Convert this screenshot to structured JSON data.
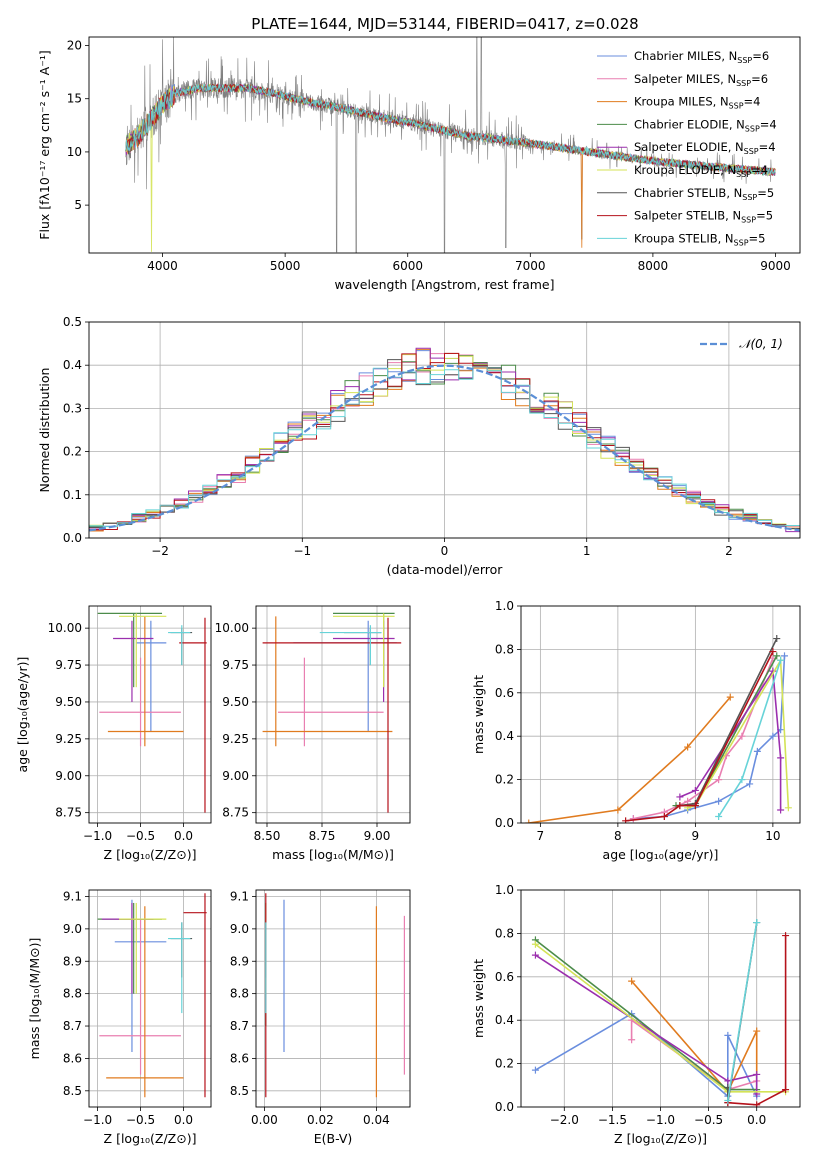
{
  "title": "PLATE=1644, MJD=53144, FIBERID=0417, z=0.028",
  "series": [
    {
      "name": "Chabrier MILES",
      "nssp": "6",
      "color": "#6a8ede"
    },
    {
      "name": "Salpeter MILES",
      "nssp": "6",
      "color": "#e97fb1"
    },
    {
      "name": "Kroupa MILES",
      "nssp": "4",
      "color": "#e07b1f"
    },
    {
      "name": "Chabrier ELODIE",
      "nssp": "4",
      "color": "#4c8c4a"
    },
    {
      "name": "Salpeter ELODIE",
      "nssp": "4",
      "color": "#9b2fae"
    },
    {
      "name": "Kroupa ELODIE",
      "nssp": "4",
      "color": "#d4e357"
    },
    {
      "name": "Chabrier STELIB",
      "nssp": "5",
      "color": "#555555"
    },
    {
      "name": "Salpeter STELIB",
      "nssp": "5",
      "color": "#b5121b"
    },
    {
      "name": "Kroupa STELIB",
      "nssp": "5",
      "color": "#67d3d8"
    }
  ],
  "nssp_prefix": "N",
  "nssp_sub": "SSP",
  "chart_data": [
    {
      "id": "spectrum",
      "type": "line",
      "xlabel": "wavelength [Angstrom, rest frame]",
      "ylabel": "Flux [fλ10⁻¹⁷ erg cm⁻² s⁻¹ A⁻¹]",
      "xlim": [
        3400,
        9200
      ],
      "ylim": [
        0.5,
        20.8
      ],
      "xticks": [
        4000,
        5000,
        6000,
        7000,
        8000,
        9000
      ],
      "yticks": [
        5,
        10,
        15,
        20
      ],
      "grid": false,
      "legend": "top-right",
      "data_color": "#808080",
      "continuum": [
        [
          3700,
          10.5
        ],
        [
          3800,
          11.5
        ],
        [
          3900,
          13
        ],
        [
          4000,
          14.5
        ],
        [
          4100,
          15.5
        ],
        [
          4300,
          16
        ],
        [
          4500,
          16
        ],
        [
          4700,
          16
        ],
        [
          4900,
          15.5
        ],
        [
          5200,
          14.7
        ],
        [
          5500,
          14
        ],
        [
          5800,
          13.2
        ],
        [
          6000,
          12.8
        ],
        [
          6300,
          12
        ],
        [
          6500,
          11.5
        ],
        [
          6800,
          11.1
        ],
        [
          7000,
          10.8
        ],
        [
          7300,
          10.3
        ],
        [
          7600,
          9.8
        ],
        [
          7900,
          9.3
        ],
        [
          8200,
          8.9
        ],
        [
          8500,
          8.6
        ],
        [
          8800,
          8.3
        ],
        [
          9000,
          8.1
        ]
      ],
      "model_end": 7450,
      "sky_lines": [
        [
          5420,
          0.6
        ],
        [
          5580,
          0.5
        ],
        [
          6300,
          0.5
        ],
        [
          6800,
          1.0
        ],
        [
          7420,
          1.8
        ]
      ],
      "emission": [
        [
          6563,
          20.8
        ],
        [
          6600,
          20.8
        ]
      ]
    },
    {
      "id": "residuals",
      "type": "bar",
      "xlabel": "(data-model)/error",
      "ylabel": "Normed distribution",
      "xlim": [
        -2.5,
        2.5
      ],
      "ylim": [
        0,
        0.5
      ],
      "xticks": [
        -2,
        -1,
        0,
        1,
        2
      ],
      "yticks": [
        0,
        0.1,
        0.2,
        0.3,
        0.4,
        0.5
      ],
      "grid": true,
      "legend": "top-right",
      "reference_label": "𝒩(0, 1)",
      "bin_width": 0.1
    },
    {
      "id": "age-vs-Z",
      "type": "scatter",
      "xlabel": "Z [log₁₀(Z/Z⊙)]",
      "ylabel": "age  [log₁₀(age/yr)]",
      "xlim": [
        -1.1,
        0.32
      ],
      "ylim": [
        8.68,
        10.15
      ],
      "xticks": [
        -1.0,
        -0.5,
        0.0
      ],
      "yticks": [
        8.75,
        9.0,
        9.25,
        9.5,
        9.75,
        10.0
      ],
      "grid": true,
      "points": [
        {
          "s": 0,
          "x": -0.38,
          "y": 9.9,
          "xe": [
            -0.55,
            -0.2
          ],
          "ye": [
            9.3,
            10.05
          ]
        },
        {
          "s": 1,
          "x": -0.5,
          "y": 9.43,
          "xe": [
            -0.98,
            -0.03
          ],
          "ye": [
            9.2,
            9.8
          ]
        },
        {
          "s": 2,
          "x": -0.45,
          "y": 9.3,
          "xe": [
            -0.88,
            0.0
          ],
          "ye": [
            9.2,
            10.08
          ]
        },
        {
          "s": 3,
          "x": -0.58,
          "y": 10.1,
          "xe": [
            -1.0,
            -0.25
          ],
          "ye": [
            9.6,
            10.1
          ]
        },
        {
          "s": 4,
          "x": -0.6,
          "y": 9.93,
          "xe": [
            -0.82,
            -0.35
          ],
          "ye": [
            9.5,
            10.05
          ]
        },
        {
          "s": 5,
          "x": -0.55,
          "y": 10.08,
          "xe": [
            -0.75,
            -0.2
          ],
          "ye": [
            9.6,
            10.1
          ]
        },
        {
          "s": 6,
          "x": -0.02,
          "y": 9.97,
          "xe": [
            -0.15,
            0.1
          ],
          "ye": [
            9.75,
            10.0
          ]
        },
        {
          "s": 7,
          "x": 0.25,
          "y": 9.9,
          "xe": [
            -0.05,
            0.27
          ],
          "ye": [
            8.75,
            10.07
          ]
        },
        {
          "s": 8,
          "x": -0.02,
          "y": 9.97,
          "xe": [
            -0.18,
            0.08
          ],
          "ye": [
            9.75,
            10.02
          ]
        }
      ]
    },
    {
      "id": "age-vs-mass",
      "type": "scatter",
      "xlabel": "mass [log₁₀(M/M⊙)]",
      "ylabel": "",
      "xlim": [
        8.45,
        9.15
      ],
      "ylim": [
        8.68,
        10.15
      ],
      "xticks": [
        8.5,
        8.75,
        9.0
      ],
      "yticks": [
        8.75,
        9.0,
        9.25,
        9.5,
        9.75,
        10.0
      ],
      "grid": true,
      "points": [
        {
          "s": 0,
          "x": 8.96,
          "y": 9.9,
          "xe": [
            8.62,
            9.09
          ],
          "ye": [
            9.3,
            10.05
          ]
        },
        {
          "s": 1,
          "x": 8.67,
          "y": 9.43,
          "xe": [
            8.55,
            9.03
          ],
          "ye": [
            9.2,
            9.8
          ]
        },
        {
          "s": 2,
          "x": 8.54,
          "y": 9.3,
          "xe": [
            8.48,
            9.07
          ],
          "ye": [
            9.2,
            10.08
          ]
        },
        {
          "s": 3,
          "x": 9.03,
          "y": 10.1,
          "xe": [
            8.8,
            9.08
          ],
          "ye": [
            9.6,
            10.1
          ]
        },
        {
          "s": 4,
          "x": 9.03,
          "y": 9.93,
          "xe": [
            8.8,
            9.08
          ],
          "ye": [
            9.5,
            10.05
          ]
        },
        {
          "s": 5,
          "x": 9.03,
          "y": 10.08,
          "xe": [
            8.8,
            9.08
          ],
          "ye": [
            9.6,
            10.1
          ]
        },
        {
          "s": 6,
          "x": 8.97,
          "y": 9.97,
          "xe": [
            8.85,
            9.02
          ],
          "ye": [
            9.75,
            10.0
          ]
        },
        {
          "s": 7,
          "x": 9.05,
          "y": 9.9,
          "xe": [
            8.48,
            9.11
          ],
          "ye": [
            8.75,
            10.07
          ]
        },
        {
          "s": 8,
          "x": 8.97,
          "y": 9.97,
          "xe": [
            8.74,
            9.02
          ],
          "ye": [
            9.75,
            10.02
          ]
        }
      ]
    },
    {
      "id": "mass-vs-Z",
      "type": "scatter",
      "xlabel": "Z [log₁₀(Z/Z⊙)]",
      "ylabel": "mass [log₁₀(M/M⊙)]",
      "xlim": [
        -1.1,
        0.32
      ],
      "ylim": [
        8.45,
        9.12
      ],
      "xticks": [
        -1.0,
        -0.5,
        0.0
      ],
      "yticks": [
        8.5,
        8.6,
        8.7,
        8.8,
        8.9,
        9.0,
        9.1
      ],
      "grid": true,
      "points": [
        {
          "s": 0,
          "x": -0.6,
          "y": 8.96,
          "xe": [
            -0.8,
            -0.2
          ],
          "ye": [
            8.62,
            9.09
          ]
        },
        {
          "s": 1,
          "x": -0.5,
          "y": 8.67,
          "xe": [
            -0.98,
            -0.03
          ],
          "ye": [
            8.55,
            9.03
          ]
        },
        {
          "s": 2,
          "x": -0.45,
          "y": 8.54,
          "xe": [
            -0.9,
            0.0
          ],
          "ye": [
            8.48,
            9.07
          ]
        },
        {
          "s": 3,
          "x": -0.58,
          "y": 9.03,
          "xe": [
            -1.0,
            -0.25
          ],
          "ye": [
            8.8,
            9.08
          ]
        },
        {
          "s": 4,
          "x": -0.6,
          "y": 9.03,
          "xe": [
            -0.95,
            -0.35
          ],
          "ye": [
            8.8,
            9.08
          ]
        },
        {
          "s": 5,
          "x": -0.55,
          "y": 9.03,
          "xe": [
            -0.75,
            -0.2
          ],
          "ye": [
            8.8,
            9.08
          ]
        },
        {
          "s": 6,
          "x": -0.02,
          "y": 8.97,
          "xe": [
            -0.15,
            0.1
          ],
          "ye": [
            8.85,
            9.02
          ]
        },
        {
          "s": 7,
          "x": 0.25,
          "y": 9.05,
          "xe": [
            0.0,
            0.27
          ],
          "ye": [
            8.48,
            9.11
          ]
        },
        {
          "s": 8,
          "x": -0.02,
          "y": 8.97,
          "xe": [
            -0.18,
            0.08
          ],
          "ye": [
            8.74,
            9.02
          ]
        }
      ]
    },
    {
      "id": "mass-vs-ebv",
      "type": "scatter",
      "xlabel": "E(B-V)",
      "ylabel": "",
      "xlim": [
        -0.003,
        0.052
      ],
      "ylim": [
        8.45,
        9.12
      ],
      "xticks": [
        0.0,
        0.02,
        0.04
      ],
      "yticks": [
        8.5,
        8.6,
        8.7,
        8.8,
        8.9,
        9.0,
        9.1
      ],
      "grid": true,
      "vlines": [
        {
          "s": 0,
          "x": 0.007,
          "y": [
            8.62,
            9.09
          ]
        },
        {
          "s": 1,
          "x": 0.05,
          "y": [
            8.55,
            9.04
          ]
        },
        {
          "s": 2,
          "x": 0.04,
          "y": [
            8.48,
            9.07
          ]
        },
        {
          "s": 3,
          "x": 0.0005,
          "y": [
            8.7,
            9.08
          ]
        },
        {
          "s": 4,
          "x": 0.0005,
          "y": [
            8.75,
            9.08
          ]
        },
        {
          "s": 5,
          "x": 0.0005,
          "y": [
            8.8,
            9.08
          ]
        },
        {
          "s": 6,
          "x": 0.0005,
          "y": [
            8.85,
            9.02
          ]
        },
        {
          "s": 7,
          "x": 0.0005,
          "y": [
            8.48,
            9.11
          ]
        },
        {
          "s": 8,
          "x": 0.0005,
          "y": [
            8.74,
            9.02
          ]
        }
      ]
    },
    {
      "id": "massweight-vs-age",
      "type": "line",
      "xlabel": "age  [log₁₀(age/yr)]",
      "ylabel": "mass weight",
      "xlim": [
        6.75,
        10.35
      ],
      "ylim": [
        0,
        1.0
      ],
      "xticks": [
        7,
        8,
        9,
        10
      ],
      "yticks": [
        0.0,
        0.2,
        0.4,
        0.6,
        0.8,
        1.0
      ],
      "grid": true,
      "lines": [
        {
          "s": 0,
          "pts": [
            [
              8.2,
              0.02
            ],
            [
              8.6,
              0.03
            ],
            [
              8.9,
              0.06
            ],
            [
              9.3,
              0.1
            ],
            [
              9.7,
              0.18
            ],
            [
              9.8,
              0.33
            ],
            [
              10.0,
              0.4
            ],
            [
              10.1,
              0.43
            ],
            [
              10.15,
              0.77
            ]
          ]
        },
        {
          "s": 1,
          "pts": [
            [
              8.2,
              0.02
            ],
            [
              8.6,
              0.05
            ],
            [
              8.9,
              0.1
            ],
            [
              9.3,
              0.2
            ],
            [
              9.4,
              0.31
            ],
            [
              9.6,
              0.4
            ],
            [
              10.0,
              0.76
            ]
          ]
        },
        {
          "s": 2,
          "pts": [
            [
              6.85,
              0.0
            ],
            [
              8.0,
              0.06
            ],
            [
              8.9,
              0.35
            ],
            [
              9.45,
              0.58
            ]
          ]
        },
        {
          "s": 3,
          "pts": [
            [
              8.75,
              0.08
            ],
            [
              9.0,
              0.08
            ],
            [
              10.05,
              0.77
            ]
          ]
        },
        {
          "s": 4,
          "pts": [
            [
              8.8,
              0.12
            ],
            [
              9.0,
              0.15
            ],
            [
              10.0,
              0.7
            ],
            [
              10.1,
              0.3
            ],
            [
              10.1,
              0.06
            ]
          ]
        },
        {
          "s": 5,
          "pts": [
            [
              8.9,
              0.07
            ],
            [
              9.0,
              0.08
            ],
            [
              10.1,
              0.75
            ],
            [
              10.2,
              0.07
            ]
          ]
        },
        {
          "s": 6,
          "pts": [
            [
              8.8,
              0.08
            ],
            [
              9.0,
              0.09
            ],
            [
              10.05,
              0.85
            ]
          ]
        },
        {
          "s": 7,
          "pts": [
            [
              8.1,
              0.01
            ],
            [
              8.6,
              0.03
            ],
            [
              8.8,
              0.08
            ],
            [
              9.0,
              0.08
            ],
            [
              10.0,
              0.79
            ]
          ]
        },
        {
          "s": 8,
          "pts": [
            [
              9.3,
              0.03
            ],
            [
              9.6,
              0.2
            ],
            [
              10.1,
              0.75
            ]
          ]
        }
      ]
    },
    {
      "id": "massweight-vs-Z",
      "type": "line",
      "xlabel": "Z [log₁₀(Z/Z⊙)]",
      "ylabel": "mass weight",
      "xlim": [
        -2.45,
        0.45
      ],
      "ylim": [
        0,
        1.0
      ],
      "xticks": [
        -2.0,
        -1.5,
        -1.0,
        -0.5,
        0.0
      ],
      "yticks": [
        0.0,
        0.2,
        0.4,
        0.6,
        0.8,
        1.0
      ],
      "grid": true,
      "lines": [
        {
          "s": 0,
          "pts": [
            [
              -2.3,
              0.17
            ],
            [
              -1.3,
              0.43
            ],
            [
              -0.3,
              0.05
            ],
            [
              -0.3,
              0.33
            ],
            [
              0.0,
              0.05
            ]
          ]
        },
        {
          "s": 1,
          "pts": [
            [
              -1.3,
              0.31
            ],
            [
              -1.3,
              0.4
            ],
            [
              -0.3,
              0.08
            ],
            [
              0.0,
              0.12
            ]
          ]
        },
        {
          "s": 2,
          "pts": [
            [
              -1.3,
              0.58
            ],
            [
              -0.3,
              0.07
            ],
            [
              0.0,
              0.35
            ],
            [
              0.0,
              0.07
            ]
          ]
        },
        {
          "s": 3,
          "pts": [
            [
              -2.3,
              0.77
            ],
            [
              -0.3,
              0.08
            ],
            [
              0.0,
              0.08
            ]
          ]
        },
        {
          "s": 4,
          "pts": [
            [
              -2.3,
              0.7
            ],
            [
              -0.3,
              0.12
            ],
            [
              0.0,
              0.15
            ],
            [
              0.0,
              0.06
            ]
          ]
        },
        {
          "s": 5,
          "pts": [
            [
              -2.3,
              0.75
            ],
            [
              -0.3,
              0.07
            ],
            [
              0.3,
              0.07
            ]
          ]
        },
        {
          "s": 6,
          "pts": [
            [
              -0.3,
              0.09
            ],
            [
              -0.3,
              0.02
            ],
            [
              0.0,
              0.85
            ]
          ]
        },
        {
          "s": 7,
          "pts": [
            [
              -0.3,
              0.02
            ],
            [
              0.0,
              0.01
            ],
            [
              0.3,
              0.08
            ],
            [
              0.3,
              0.79
            ]
          ]
        },
        {
          "s": 8,
          "pts": [
            [
              -0.3,
              0.03
            ],
            [
              0.0,
              0.85
            ]
          ]
        }
      ]
    }
  ]
}
